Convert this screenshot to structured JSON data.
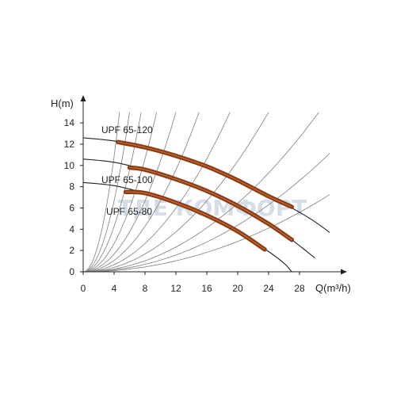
{
  "chart_data": {
    "type": "line",
    "xlabel": "Q(m³/h)",
    "ylabel": "H(m)",
    "xlim": [
      0,
      32
    ],
    "ylim": [
      0,
      15
    ],
    "x_ticks": [
      0,
      4,
      8,
      12,
      16,
      20,
      24,
      28
    ],
    "y_ticks": [
      0,
      2,
      4,
      6,
      8,
      10,
      12,
      14
    ],
    "grid": false,
    "colors": {
      "curve": "#222222",
      "system_curve": "#8a8a8a",
      "operating_band": "#8b3a12",
      "operating_band_highlight": "#c2703a",
      "watermark": "#d5dde8"
    },
    "series": [
      {
        "name": "UPF 65-120",
        "x": [
          0,
          4,
          8,
          12,
          16,
          20,
          24,
          27,
          30,
          33
        ],
        "y": [
          12.6,
          12.3,
          11.7,
          10.9,
          9.9,
          8.6,
          7.1,
          6.0,
          4.7,
          3.1
        ],
        "band": {
          "x": [
            4.5,
            8,
            12,
            16,
            20,
            24,
            27
          ],
          "y": [
            12.2,
            11.7,
            10.9,
            9.9,
            8.6,
            7.1,
            6.1
          ]
        }
      },
      {
        "name": "UPF 65-100",
        "x": [
          0,
          4,
          8,
          12,
          16,
          20,
          24,
          27,
          30
        ],
        "y": [
          10.6,
          10.3,
          9.6,
          8.7,
          7.6,
          6.2,
          4.5,
          3.0,
          1.3
        ],
        "band": {
          "x": [
            6,
            8,
            12,
            16,
            20,
            24,
            27
          ],
          "y": [
            9.8,
            9.6,
            8.7,
            7.6,
            6.2,
            4.5,
            3.0
          ]
        }
      },
      {
        "name": "UPF 65-80",
        "x": [
          0,
          4,
          8,
          12,
          16,
          20,
          24,
          26,
          27
        ],
        "y": [
          8.4,
          8.1,
          7.4,
          6.5,
          5.3,
          3.8,
          1.9,
          0.8,
          0.0
        ],
        "band": {
          "x": [
            5.5,
            8,
            12,
            16,
            20,
            23.5
          ],
          "y": [
            7.5,
            7.4,
            6.5,
            5.3,
            3.8,
            2.1
          ]
        }
      }
    ],
    "system_curves": [
      {
        "x": [
          0.0,
          4.7
        ],
        "y": [
          0,
          15.0
        ]
      },
      {
        "x": [
          0.0,
          6.0
        ],
        "y": [
          0,
          15.0
        ]
      },
      {
        "x": [
          0.0,
          7.5
        ],
        "y": [
          0,
          15.0
        ]
      },
      {
        "x": [
          0.0,
          9.5
        ],
        "y": [
          0,
          15.0
        ]
      },
      {
        "x": [
          0.0,
          12.0
        ],
        "y": [
          0,
          15.0
        ]
      },
      {
        "x": [
          0.0,
          15.0
        ],
        "y": [
          0,
          15.0
        ]
      },
      {
        "x": [
          0.0,
          19.0
        ],
        "y": [
          0,
          15.0
        ]
      },
      {
        "x": [
          0.0,
          24.0
        ],
        "y": [
          0,
          15.0
        ]
      },
      {
        "x": [
          0.0,
          30.5
        ],
        "y": [
          0,
          15.0
        ]
      },
      {
        "x": [
          0.0,
          32.0
        ],
        "y": [
          0,
          11.2
        ]
      },
      {
        "x": [
          0.0,
          32.0
        ],
        "y": [
          0,
          7.3
        ]
      }
    ],
    "watermark_text": "ТДЕ КОМФОРТ"
  }
}
